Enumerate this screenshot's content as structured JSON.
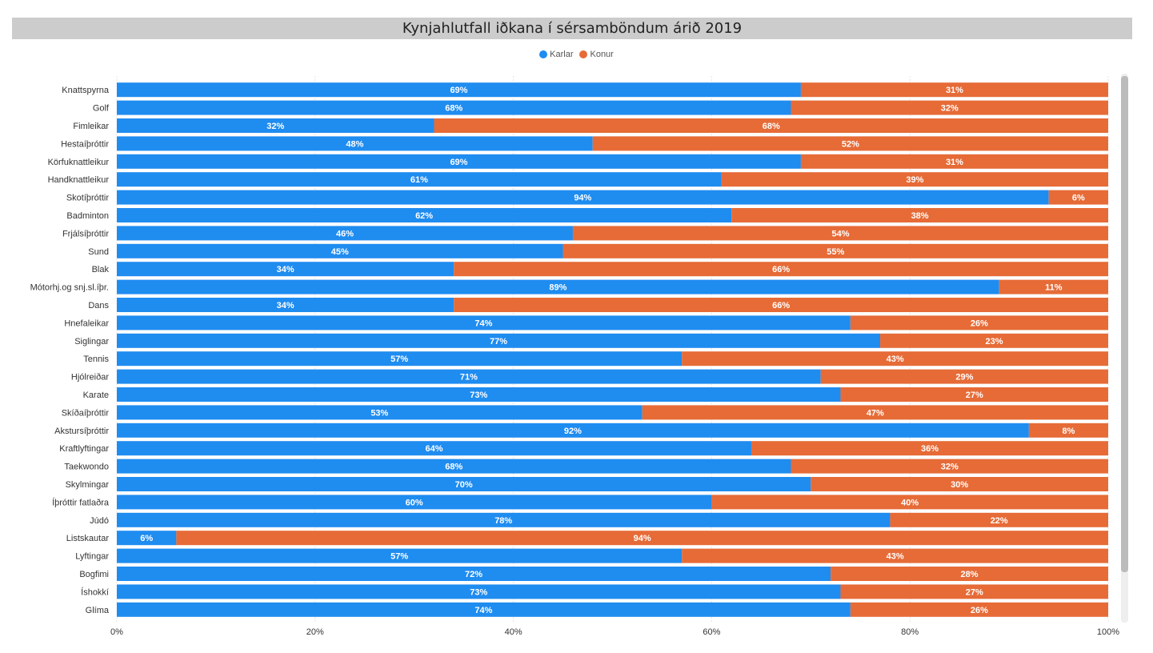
{
  "chart_data": {
    "type": "bar",
    "orientation": "horizontal",
    "stacked": true,
    "title": "Kynjahlutfall iðkana í sérsamböndum árið 2019",
    "categories": [
      "Knattspyrna",
      "Golf",
      "Fimleikar",
      "Hestaíþróttir",
      "Körfuknattleikur",
      "Handknattleikur",
      "Skotíþróttir",
      "Badminton",
      "Frjálsíþróttir",
      "Sund",
      "Blak",
      "Mótorhj.og snj.sl.íþr.",
      "Dans",
      "Hnefaleikar",
      "Siglingar",
      "Tennis",
      "Hjólreiðar",
      "Karate",
      "Skíðaíþróttir",
      "Akstursíþróttir",
      "Kraftlyftingar",
      "Taekwondo",
      "Skylmingar",
      "Íþróttir fatlaðra",
      "Júdó",
      "Listskautar",
      "Lyftingar",
      "Bogfimi",
      "Íshokkí",
      "Glíma"
    ],
    "series": [
      {
        "name": "Karlar",
        "color": "#1f8cf0",
        "values": [
          69,
          68,
          32,
          48,
          69,
          61,
          94,
          62,
          46,
          45,
          34,
          89,
          34,
          74,
          77,
          57,
          71,
          73,
          53,
          92,
          64,
          68,
          70,
          60,
          78,
          6,
          57,
          72,
          73,
          74
        ]
      },
      {
        "name": "Konur",
        "color": "#e66b37",
        "values": [
          31,
          32,
          68,
          52,
          31,
          39,
          6,
          38,
          54,
          55,
          66,
          11,
          66,
          26,
          23,
          43,
          29,
          27,
          47,
          8,
          36,
          32,
          30,
          40,
          22,
          94,
          43,
          28,
          27,
          26
        ]
      }
    ],
    "x_ticks": [
      "0%",
      "20%",
      "40%",
      "60%",
      "80%",
      "100%"
    ],
    "xlim": [
      0,
      100
    ],
    "value_suffix": "%",
    "legend_position": "top-center",
    "grid": true
  }
}
